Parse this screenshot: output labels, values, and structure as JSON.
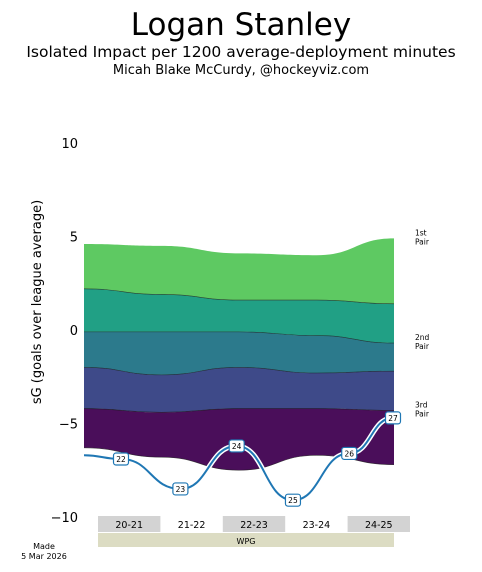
{
  "header": {
    "title": "Logan Stanley",
    "subtitle": "Isolated Impact per 1200 average-deployment minutes",
    "byline": "Micah Blake McCurdy, @hockeyviz.com"
  },
  "footer": {
    "made_line1": "Made",
    "made_line2": "5 Mar 2026"
  },
  "colors": {
    "band1": "#4a0e5a",
    "band2": "#3e4a89",
    "band3": "#2c7a8c",
    "band4": "#21a085",
    "band5": "#5ec962",
    "impact_line": "#1f77b4",
    "season_shade": "#d3d3d3",
    "team_bar": "#dcdcc3"
  },
  "chart_data": {
    "type": "area",
    "ylabel": "sG (goals over league average)",
    "ylim": [
      -10,
      10
    ],
    "yticks": [
      10,
      5,
      0,
      -5,
      -10
    ],
    "x": [
      "20-21",
      "21-22",
      "22-23",
      "23-24",
      "24-25"
    ],
    "band_boundaries": [
      [
        -6.3,
        -6.8,
        -7.5,
        -6.7,
        -7.2
      ],
      [
        -4.2,
        -4.4,
        -4.2,
        -4.2,
        -4.3
      ],
      [
        -2.0,
        -2.4,
        -2.0,
        -2.3,
        -2.2
      ],
      [
        -0.1,
        -0.1,
        -0.1,
        -0.3,
        -0.7
      ],
      [
        2.2,
        1.9,
        1.6,
        1.6,
        1.4
      ],
      [
        4.6,
        4.5,
        4.1,
        4.0,
        4.9
      ]
    ],
    "deployment_labels": [
      {
        "text": "1st Pair",
        "y": 4.9
      },
      {
        "text": "2nd Pair",
        "y": -0.7
      },
      {
        "text": "3rd Pair",
        "y": -4.3
      }
    ],
    "impact_points": [
      {
        "label": "22",
        "x": 0.15,
        "y": -6.9
      },
      {
        "label": "23",
        "x": 1.1,
        "y": -8.5
      },
      {
        "label": "24",
        "x": 2.0,
        "y": -6.2
      },
      {
        "label": "25",
        "x": 2.9,
        "y": -9.1
      },
      {
        "label": "26",
        "x": 3.8,
        "y": -6.6
      },
      {
        "label": "27",
        "x": 4.5,
        "y": -4.7
      }
    ],
    "team": "WPG"
  }
}
